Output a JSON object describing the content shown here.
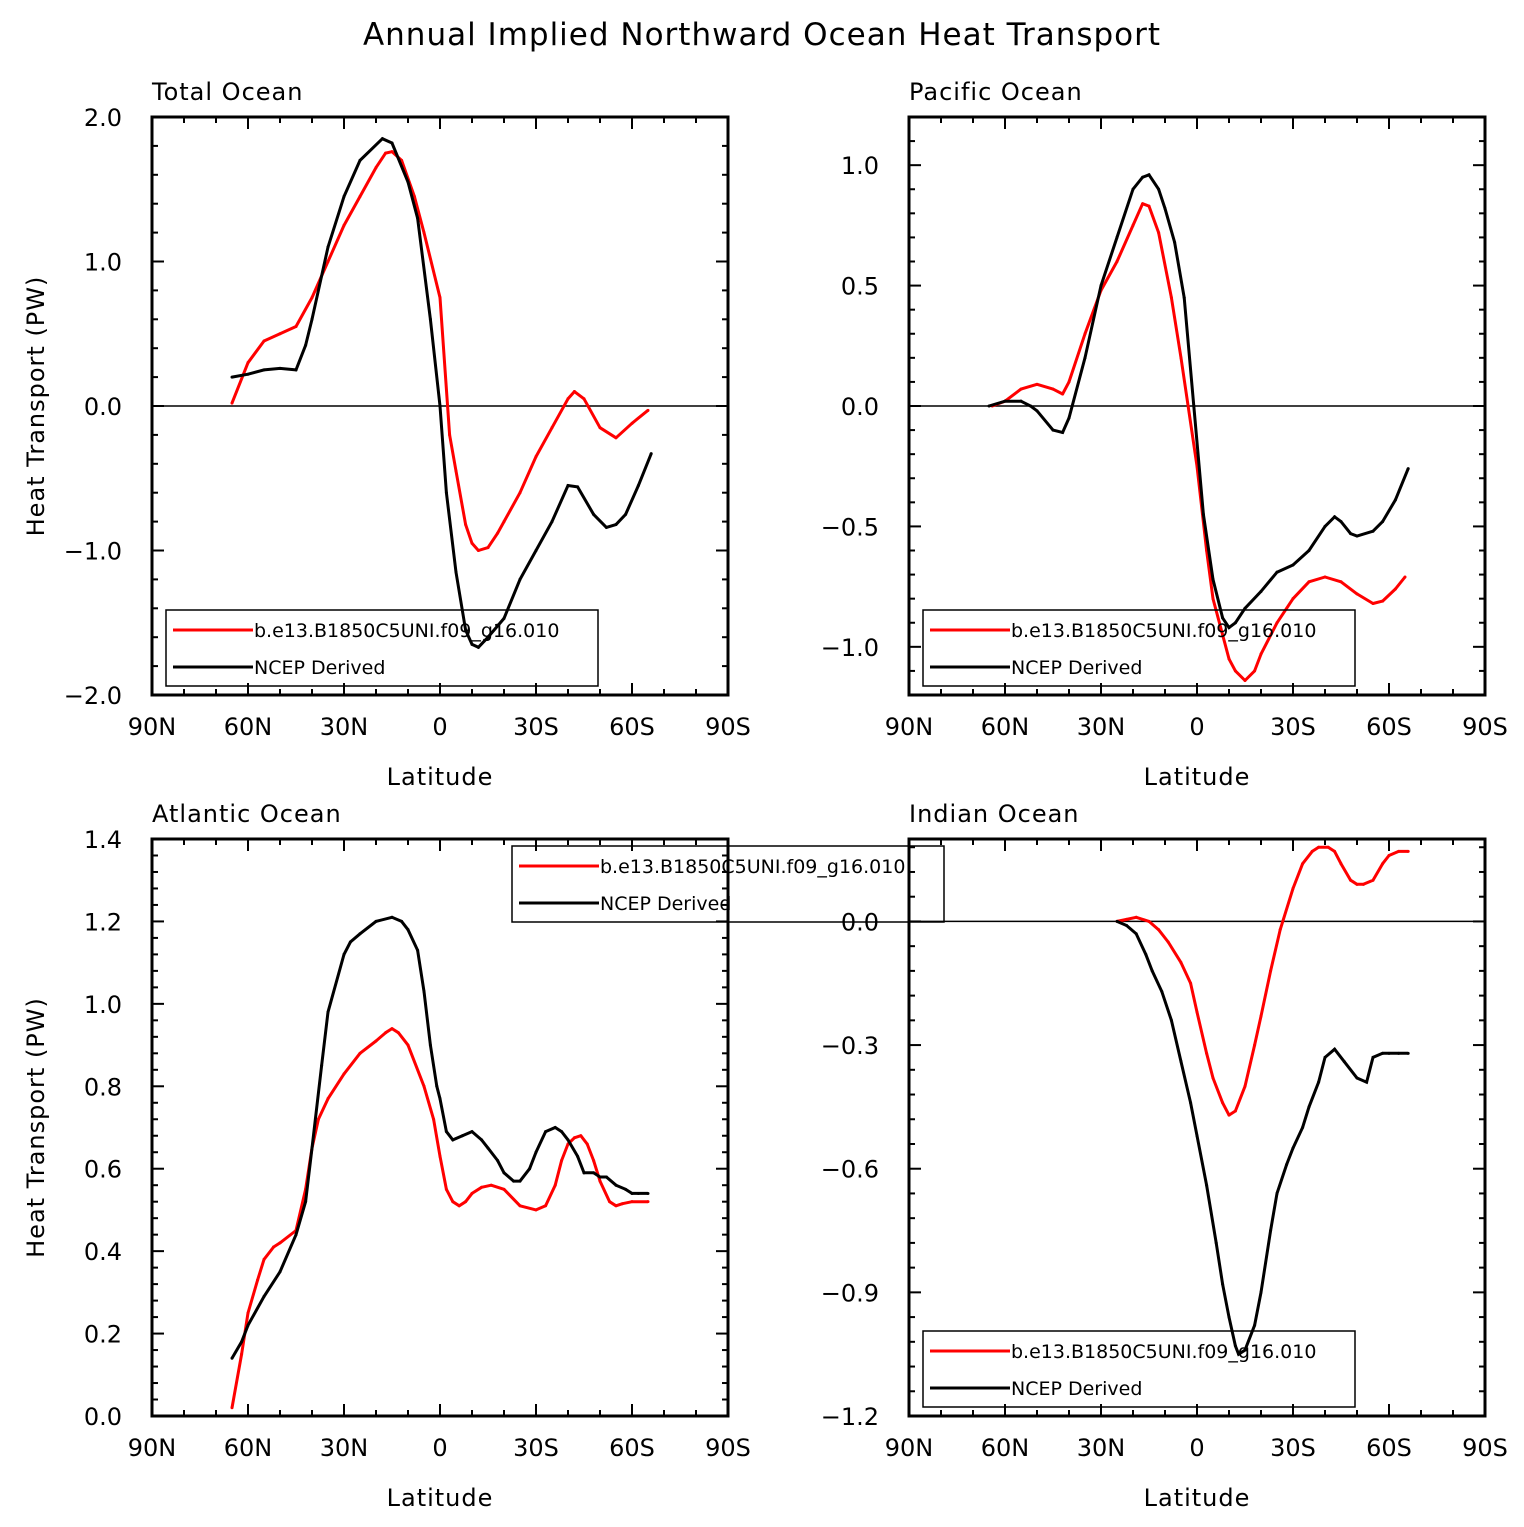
{
  "title": "Annual Implied Northward Ocean Heat Transport",
  "legend_labels": [
    "b.e13.B1850C5UNI.f09_g16.010",
    "NCEP Derived"
  ],
  "colors": {
    "model": "#ff0000",
    "ncep": "#000000",
    "axis": "#000000"
  },
  "chart_data": [
    {
      "type": "line",
      "title": "Total Ocean",
      "xlabel": "Latitude",
      "ylabel": "Heat Transport (PW)",
      "xlim": [
        -90,
        90
      ],
      "ylim": [
        -2.0,
        2.0
      ],
      "xticks": [
        -90,
        -60,
        -30,
        0,
        30,
        60,
        90
      ],
      "xtick_labels": [
        "90N",
        "60N",
        "30N",
        "0",
        "30S",
        "60S",
        "90S"
      ],
      "yticks": [
        -2.0,
        -1.0,
        0.0,
        1.0,
        2.0
      ],
      "ytick_labels": [
        "−2.0",
        "−1.0",
        "0.0",
        "1.0",
        "2.0"
      ],
      "legend_position": "bottom-left",
      "series": [
        {
          "name": "b.e13.B1850C5UNI.f09_g16.010",
          "color": "#ff0000",
          "x": [
            -65,
            -60,
            -55,
            -50,
            -45,
            -40,
            -35,
            -30,
            -25,
            -20,
            -17,
            -15,
            -12,
            -8,
            -5,
            0,
            3,
            5,
            8,
            10,
            12,
            15,
            18,
            20,
            25,
            30,
            35,
            40,
            42,
            45,
            50,
            55,
            60,
            65
          ],
          "y": [
            0.02,
            0.3,
            0.45,
            0.5,
            0.55,
            0.75,
            1.0,
            1.25,
            1.45,
            1.65,
            1.75,
            1.76,
            1.7,
            1.45,
            1.2,
            0.75,
            -0.2,
            -0.45,
            -0.82,
            -0.95,
            -1.0,
            -0.98,
            -0.88,
            -0.8,
            -0.6,
            -0.35,
            -0.15,
            0.05,
            0.1,
            0.05,
            -0.15,
            -0.22,
            -0.12,
            -0.03
          ]
        },
        {
          "name": "NCEP Derived",
          "color": "#000000",
          "x": [
            -65,
            -60,
            -55,
            -50,
            -45,
            -42,
            -40,
            -35,
            -30,
            -25,
            -18,
            -15,
            -10,
            -7,
            -3,
            0,
            2,
            5,
            8,
            10,
            12,
            15,
            20,
            25,
            30,
            35,
            40,
            43,
            48,
            52,
            55,
            58,
            62,
            66
          ],
          "y": [
            0.2,
            0.22,
            0.25,
            0.26,
            0.25,
            0.42,
            0.6,
            1.1,
            1.45,
            1.7,
            1.85,
            1.82,
            1.55,
            1.3,
            0.6,
            0.0,
            -0.6,
            -1.15,
            -1.55,
            -1.65,
            -1.67,
            -1.6,
            -1.47,
            -1.2,
            -1.0,
            -0.8,
            -0.55,
            -0.56,
            -0.75,
            -0.84,
            -0.82,
            -0.75,
            -0.55,
            -0.33
          ]
        }
      ]
    },
    {
      "type": "line",
      "title": "Pacific Ocean",
      "xlabel": "Latitude",
      "ylabel": "",
      "xlim": [
        -90,
        90
      ],
      "ylim": [
        -1.2,
        1.2
      ],
      "xticks": [
        -90,
        -60,
        -30,
        0,
        30,
        60,
        90
      ],
      "xtick_labels": [
        "90N",
        "60N",
        "30N",
        "0",
        "30S",
        "60S",
        "90S"
      ],
      "yticks": [
        -1.0,
        -0.5,
        0.0,
        0.5,
        1.0
      ],
      "ytick_labels": [
        "−1.0",
        "−0.5",
        "0.0",
        "0.5",
        "1.0"
      ],
      "legend_position": "bottom-left",
      "series": [
        {
          "name": "b.e13.B1850C5UNI.f09_g16.010",
          "color": "#ff0000",
          "x": [
            -64,
            -60,
            -55,
            -50,
            -45,
            -42,
            -40,
            -35,
            -30,
            -25,
            -20,
            -17,
            -15,
            -12,
            -8,
            -5,
            0,
            3,
            5,
            8,
            10,
            12,
            15,
            18,
            20,
            25,
            30,
            35,
            40,
            45,
            50,
            55,
            58,
            62,
            65
          ],
          "y": [
            0.0,
            0.02,
            0.07,
            0.09,
            0.07,
            0.05,
            0.1,
            0.3,
            0.48,
            0.6,
            0.75,
            0.84,
            0.83,
            0.72,
            0.45,
            0.2,
            -0.25,
            -0.6,
            -0.8,
            -0.95,
            -1.05,
            -1.1,
            -1.14,
            -1.1,
            -1.03,
            -0.9,
            -0.8,
            -0.73,
            -0.71,
            -0.73,
            -0.78,
            -0.82,
            -0.81,
            -0.76,
            -0.71
          ]
        },
        {
          "name": "NCEP Derived",
          "color": "#000000",
          "x": [
            -65,
            -60,
            -55,
            -52,
            -50,
            -45,
            -42,
            -40,
            -35,
            -30,
            -25,
            -20,
            -17,
            -15,
            -12,
            -10,
            -7,
            -4,
            -1,
            2,
            5,
            8,
            10,
            12,
            15,
            20,
            25,
            30,
            35,
            40,
            43,
            45,
            48,
            50,
            55,
            58,
            62,
            66
          ],
          "y": [
            0.0,
            0.02,
            0.02,
            0.0,
            -0.02,
            -0.1,
            -0.11,
            -0.05,
            0.2,
            0.5,
            0.7,
            0.9,
            0.95,
            0.96,
            0.9,
            0.82,
            0.68,
            0.45,
            0.0,
            -0.45,
            -0.72,
            -0.88,
            -0.92,
            -0.9,
            -0.84,
            -0.77,
            -0.69,
            -0.66,
            -0.6,
            -0.5,
            -0.46,
            -0.48,
            -0.53,
            -0.54,
            -0.52,
            -0.48,
            -0.39,
            -0.26
          ]
        }
      ]
    },
    {
      "type": "line",
      "title": "Atlantic Ocean",
      "xlabel": "Latitude",
      "ylabel": "Heat Transport (PW)",
      "xlim": [
        -90,
        90
      ],
      "ylim": [
        0.0,
        1.4
      ],
      "xticks": [
        -90,
        -60,
        -30,
        0,
        30,
        60,
        90
      ],
      "xtick_labels": [
        "90N",
        "60N",
        "30N",
        "0",
        "30S",
        "60S",
        "90S"
      ],
      "yticks": [
        0.0,
        0.2,
        0.4,
        0.6,
        0.8,
        1.0,
        1.2,
        1.4
      ],
      "ytick_labels": [
        "0.0",
        "0.2",
        "0.4",
        "0.6",
        "0.8",
        "1.0",
        "1.2",
        "1.4"
      ],
      "legend_position": "top-right",
      "series": [
        {
          "name": "b.e13.B1850C5UNI.f09_g16.010",
          "color": "#ff0000",
          "x": [
            -65,
            -62,
            -60,
            -57,
            -55,
            -52,
            -50,
            -45,
            -42,
            -40,
            -38,
            -35,
            -30,
            -25,
            -20,
            -17,
            -15,
            -13,
            -10,
            -5,
            -2,
            0,
            2,
            4,
            6,
            8,
            10,
            13,
            16,
            20,
            25,
            30,
            33,
            36,
            38,
            40,
            42,
            44,
            46,
            48,
            50,
            53,
            55,
            57,
            60,
            65
          ],
          "y": [
            0.02,
            0.15,
            0.25,
            0.33,
            0.38,
            0.41,
            0.42,
            0.45,
            0.55,
            0.65,
            0.72,
            0.77,
            0.83,
            0.88,
            0.91,
            0.93,
            0.94,
            0.93,
            0.9,
            0.8,
            0.72,
            0.63,
            0.55,
            0.52,
            0.51,
            0.52,
            0.54,
            0.555,
            0.56,
            0.55,
            0.51,
            0.5,
            0.51,
            0.56,
            0.62,
            0.66,
            0.675,
            0.68,
            0.66,
            0.62,
            0.57,
            0.52,
            0.51,
            0.515,
            0.52,
            0.52
          ]
        },
        {
          "name": "NCEP Derived",
          "color": "#000000",
          "x": [
            -65,
            -62,
            -60,
            -55,
            -50,
            -45,
            -42,
            -40,
            -37,
            -35,
            -30,
            -28,
            -25,
            -20,
            -15,
            -12,
            -10,
            -7,
            -5,
            -3,
            -1,
            0,
            2,
            4,
            7,
            10,
            13,
            15,
            18,
            20,
            23,
            25,
            28,
            30,
            33,
            36,
            38,
            40,
            43,
            45,
            48,
            50,
            52,
            55,
            58,
            60,
            62,
            65
          ],
          "y": [
            0.14,
            0.18,
            0.22,
            0.29,
            0.35,
            0.44,
            0.52,
            0.65,
            0.85,
            0.98,
            1.12,
            1.15,
            1.17,
            1.2,
            1.21,
            1.2,
            1.18,
            1.13,
            1.03,
            0.9,
            0.8,
            0.77,
            0.69,
            0.67,
            0.68,
            0.69,
            0.67,
            0.65,
            0.62,
            0.59,
            0.57,
            0.57,
            0.6,
            0.64,
            0.69,
            0.7,
            0.69,
            0.67,
            0.63,
            0.59,
            0.59,
            0.58,
            0.58,
            0.56,
            0.55,
            0.54,
            0.54,
            0.54
          ]
        }
      ]
    },
    {
      "type": "line",
      "title": "Indian Ocean",
      "xlabel": "Latitude",
      "ylabel": "",
      "xlim": [
        -90,
        90
      ],
      "ylim": [
        -1.2,
        0.2
      ],
      "xticks": [
        -90,
        -60,
        -30,
        0,
        30,
        60,
        90
      ],
      "xtick_labels": [
        "90N",
        "60N",
        "30N",
        "0",
        "30S",
        "60S",
        "90S"
      ],
      "yticks": [
        -1.2,
        -0.9,
        -0.6,
        -0.3,
        0.0
      ],
      "ytick_labels": [
        "−1.2",
        "−0.9",
        "−0.6",
        "−0.3",
        "0.0"
      ],
      "legend_position": "bottom-left",
      "series": [
        {
          "name": "b.e13.B1850C5UNI.f09_g16.010",
          "color": "#ff0000",
          "x": [
            -25,
            -22,
            -19,
            -15,
            -12,
            -9,
            -5,
            -2,
            0,
            3,
            5,
            8,
            10,
            12,
            15,
            18,
            20,
            23,
            26,
            30,
            33,
            36,
            38,
            41,
            43,
            45,
            48,
            50,
            52,
            55,
            58,
            60,
            63,
            66
          ],
          "y": [
            0.0,
            0.005,
            0.01,
            0.0,
            -0.02,
            -0.05,
            -0.1,
            -0.15,
            -0.22,
            -0.32,
            -0.38,
            -0.44,
            -0.47,
            -0.46,
            -0.4,
            -0.3,
            -0.23,
            -0.12,
            -0.02,
            0.08,
            0.14,
            0.17,
            0.18,
            0.18,
            0.17,
            0.14,
            0.1,
            0.09,
            0.09,
            0.1,
            0.14,
            0.16,
            0.17,
            0.17
          ]
        },
        {
          "name": "NCEP Derived",
          "color": "#000000",
          "x": [
            -25,
            -22,
            -19,
            -16,
            -14,
            -11,
            -8,
            -5,
            -2,
            0,
            3,
            6,
            8,
            10,
            12,
            13,
            15,
            18,
            20,
            23,
            25,
            28,
            30,
            33,
            35,
            38,
            40,
            43,
            46,
            50,
            53,
            55,
            58,
            60,
            63,
            66
          ],
          "y": [
            0.0,
            -0.01,
            -0.03,
            -0.08,
            -0.12,
            -0.17,
            -0.24,
            -0.34,
            -0.44,
            -0.52,
            -0.64,
            -0.78,
            -0.88,
            -0.96,
            -1.03,
            -1.05,
            -1.04,
            -0.98,
            -0.9,
            -0.75,
            -0.66,
            -0.59,
            -0.55,
            -0.5,
            -0.45,
            -0.39,
            -0.33,
            -0.31,
            -0.34,
            -0.38,
            -0.39,
            -0.33,
            -0.32,
            -0.32,
            -0.32,
            -0.32
          ]
        }
      ]
    }
  ]
}
